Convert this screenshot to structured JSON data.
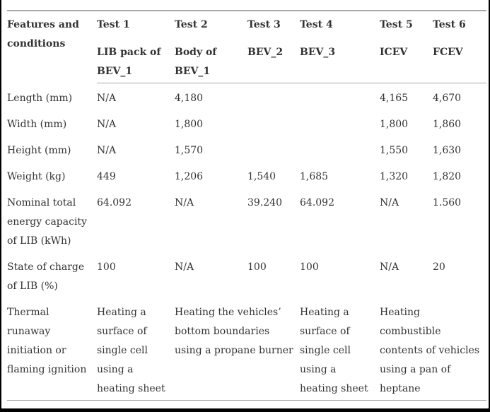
{
  "page": {
    "background_color": "#ffffff",
    "text_color": "#333333",
    "rule_color": "#a8a8a8",
    "frame_border_color": "#000000"
  },
  "table": {
    "header": {
      "features": "Features and conditions",
      "tests": [
        {
          "title": "Test 1",
          "subtitle": "LIB pack of BEV_1"
        },
        {
          "title": "Test 2",
          "subtitle": "Body of BEV_1"
        },
        {
          "title": "Test 3",
          "subtitle": "BEV_2"
        },
        {
          "title": "Test 4",
          "subtitle": "BEV_3"
        },
        {
          "title": "Test 5",
          "subtitle": "ICEV"
        },
        {
          "title": "Test 6",
          "subtitle": "FCEV"
        }
      ]
    },
    "rows": [
      {
        "label": "Length (mm)",
        "values": [
          "N/A",
          "4,180",
          "",
          "",
          "4,165",
          "4,670"
        ]
      },
      {
        "label": "Width (mm)",
        "values": [
          "N/A",
          "1,800",
          "",
          "",
          "1,800",
          "1,860"
        ]
      },
      {
        "label": "Height (mm)",
        "values": [
          "N/A",
          "1,570",
          "",
          "",
          "1,550",
          "1,630"
        ]
      },
      {
        "label": "Weight (kg)",
        "values": [
          "449",
          "1,206",
          "1,540",
          "1,685",
          "1,320",
          "1,820"
        ]
      },
      {
        "label": "Nominal total energy capacity of LIB (kWh)",
        "values": [
          "64.092",
          "N/A",
          "39.240",
          "64.092",
          "N/A",
          "1.560"
        ]
      },
      {
        "label": "State of charge of LIB (%)",
        "values": [
          "100",
          "N/A",
          "100",
          "100",
          "N/A",
          "20"
        ]
      }
    ],
    "ignition_row": {
      "label": "Thermal runaway initiation or flaming ignition",
      "test1": "Heating a surface of single cell using a heating sheet",
      "test2_3": "Heating the vehicles’ bottom boundaries using a propane burner",
      "test4": "Heating a surface of single cell using a heating sheet",
      "test5_6": "Heating combustible contents of vehicles using a pan of heptane"
    }
  }
}
